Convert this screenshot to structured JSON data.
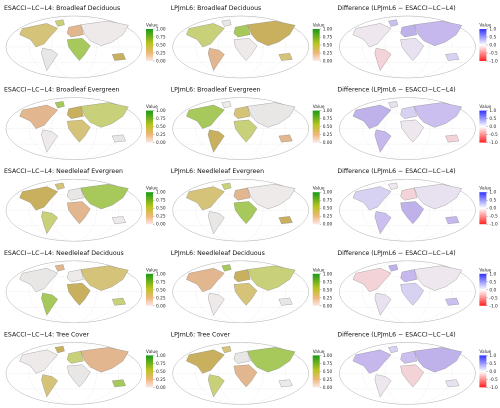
{
  "panels": [
    {
      "title": "ESACCI−LC−L4: Broadleaf Deciduous",
      "legend_title": "Value",
      "scale": "value"
    },
    {
      "title": "LPJmL6: Broadleaf Deciduous",
      "legend_title": "Value",
      "scale": "value"
    },
    {
      "title": "Difference (LPJmL6 − ESACCI−LC−L4)",
      "legend_title": "Value",
      "scale": "difference"
    },
    {
      "title": "ESACCI−LC−L4: Broadleaf Evergreen",
      "legend_title": "Value",
      "scale": "value"
    },
    {
      "title": "LPJmL6: Broadleaf Evergreen",
      "legend_title": "Value",
      "scale": "value"
    },
    {
      "title": "Difference (LPJmL6 − ESACCI−LC−L4)",
      "legend_title": "Value",
      "scale": "difference"
    },
    {
      "title": "ESACCI−LC−L4: Needleleaf Evergreen",
      "legend_title": "Value",
      "scale": "value"
    },
    {
      "title": "LPJmL6: Needleleaf Evergreen",
      "legend_title": "Value",
      "scale": "value"
    },
    {
      "title": "Difference (LPJmL6 − ESACCI−LC−L4)",
      "legend_title": "Value",
      "scale": "difference"
    },
    {
      "title": "ESACCI−LC−L4: Needleleaf Deciduous",
      "legend_title": "Value",
      "scale": "value"
    },
    {
      "title": "LPJmL6: Needleleaf Deciduous",
      "legend_title": "Value",
      "scale": "value"
    },
    {
      "title": "Difference (LPJmL6 − ESACCI−LC−L4)",
      "legend_title": "Value",
      "scale": "difference"
    },
    {
      "title": "ESACCI−LC−L4: Tree Cover",
      "legend_title": "Value",
      "scale": "value"
    },
    {
      "title": "LPJmL6: Tree Cover",
      "legend_title": "Value",
      "scale": "value"
    },
    {
      "title": "Difference (LPJmL6 − ESACCI−LC−L4)",
      "legend_title": "Value",
      "scale": "difference"
    }
  ],
  "scales": {
    "value": [
      "1.00",
      "0.75",
      "0.50",
      "0.25",
      "0.00"
    ],
    "difference": [
      "1.0",
      "0.5",
      "0.0",
      "-0.5",
      "-1.0"
    ]
  }
}
